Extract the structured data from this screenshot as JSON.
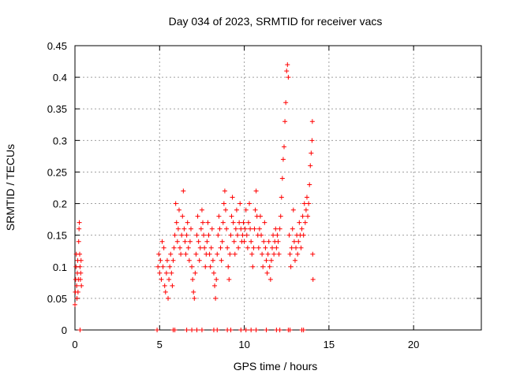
{
  "chart_data": {
    "type": "scatter",
    "title": "Day 034 of 2023, SRMTID for receiver vacs",
    "xlabel": "GPS time / hours",
    "ylabel": "SRMTID / TECUs",
    "xlim": [
      0,
      24
    ],
    "ylim": [
      0,
      0.45
    ],
    "xticks": [
      0,
      5,
      10,
      15,
      20
    ],
    "xtick_labels": [
      "0",
      "5",
      "10",
      "15",
      "20"
    ],
    "yticks": [
      0,
      0.05,
      0.1,
      0.15,
      0.2,
      0.25,
      0.3,
      0.35,
      0.4,
      0.45
    ],
    "ytick_labels": [
      "0",
      "0.05",
      "0.1",
      "0.15",
      "0.2",
      "0.25",
      "0.3",
      "0.35",
      "0.4",
      "0.45"
    ],
    "grid": true,
    "marker": "+",
    "color": "#ff0000",
    "series": [
      {
        "name": "SRMTID",
        "points": [
          [
            0.0,
            0.04
          ],
          [
            0.02,
            0.06
          ],
          [
            0.04,
            0.08
          ],
          [
            0.06,
            0.1
          ],
          [
            0.08,
            0.12
          ],
          [
            0.1,
            0.07
          ],
          [
            0.12,
            0.05
          ],
          [
            0.14,
            0.09
          ],
          [
            0.16,
            0.11
          ],
          [
            0.18,
            0.06
          ],
          [
            0.2,
            0.08
          ],
          [
            0.22,
            0.14
          ],
          [
            0.24,
            0.16
          ],
          [
            0.26,
            0.17
          ],
          [
            0.28,
            0.12
          ],
          [
            0.3,
            0.1
          ],
          [
            0.32,
            0.08
          ],
          [
            0.34,
            0.09
          ],
          [
            0.36,
            0.11
          ],
          [
            0.38,
            0.07
          ],
          [
            4.9,
            0.1
          ],
          [
            4.95,
            0.12
          ],
          [
            5.0,
            0.09
          ],
          [
            5.05,
            0.11
          ],
          [
            5.1,
            0.08
          ],
          [
            5.15,
            0.14
          ],
          [
            5.2,
            0.1
          ],
          [
            5.25,
            0.13
          ],
          [
            5.3,
            0.07
          ],
          [
            5.35,
            0.06
          ],
          [
            5.4,
            0.09
          ],
          [
            5.45,
            0.11
          ],
          [
            5.5,
            0.05
          ],
          [
            5.55,
            0.08
          ],
          [
            5.6,
            0.1
          ],
          [
            5.65,
            0.12
          ],
          [
            5.7,
            0.09
          ],
          [
            5.75,
            0.07
          ],
          [
            5.8,
            0.11
          ],
          [
            5.85,
            0.13
          ],
          [
            5.9,
            0.15
          ],
          [
            5.95,
            0.2
          ],
          [
            6.0,
            0.17
          ],
          [
            6.05,
            0.14
          ],
          [
            6.1,
            0.16
          ],
          [
            6.15,
            0.19
          ],
          [
            6.2,
            0.13
          ],
          [
            6.25,
            0.12
          ],
          [
            6.3,
            0.15
          ],
          [
            6.35,
            0.18
          ],
          [
            6.4,
            0.22
          ],
          [
            6.45,
            0.16
          ],
          [
            6.5,
            0.14
          ],
          [
            6.55,
            0.12
          ],
          [
            6.6,
            0.15
          ],
          [
            6.65,
            0.17
          ],
          [
            6.7,
            0.13
          ],
          [
            6.75,
            0.11
          ],
          [
            6.8,
            0.14
          ],
          [
            6.85,
            0.16
          ],
          [
            6.9,
            0.1
          ],
          [
            6.95,
            0.08
          ],
          [
            7.0,
            0.06
          ],
          [
            7.05,
            0.05
          ],
          [
            7.1,
            0.09
          ],
          [
            7.15,
            0.12
          ],
          [
            7.2,
            0.15
          ],
          [
            7.25,
            0.18
          ],
          [
            7.3,
            0.14
          ],
          [
            7.35,
            0.11
          ],
          [
            7.4,
            0.13
          ],
          [
            7.45,
            0.16
          ],
          [
            7.5,
            0.19
          ],
          [
            7.55,
            0.17
          ],
          [
            7.6,
            0.15
          ],
          [
            7.65,
            0.13
          ],
          [
            7.7,
            0.1
          ],
          [
            7.75,
            0.12
          ],
          [
            7.8,
            0.14
          ],
          [
            7.85,
            0.17
          ],
          [
            7.9,
            0.15
          ],
          [
            7.95,
            0.12
          ],
          [
            8.0,
            0.1
          ],
          [
            8.05,
            0.13
          ],
          [
            8.1,
            0.16
          ],
          [
            8.15,
            0.11
          ],
          [
            8.2,
            0.09
          ],
          [
            8.25,
            0.07
          ],
          [
            8.3,
            0.05
          ],
          [
            8.35,
            0.08
          ],
          [
            8.4,
            0.12
          ],
          [
            8.45,
            0.15
          ],
          [
            8.5,
            0.18
          ],
          [
            8.55,
            0.16
          ],
          [
            8.6,
            0.13
          ],
          [
            8.65,
            0.11
          ],
          [
            8.7,
            0.14
          ],
          [
            8.75,
            0.17
          ],
          [
            8.8,
            0.2
          ],
          [
            8.85,
            0.22
          ],
          [
            8.9,
            0.19
          ],
          [
            8.95,
            0.16
          ],
          [
            9.0,
            0.13
          ],
          [
            9.05,
            0.1
          ],
          [
            9.1,
            0.08
          ],
          [
            9.15,
            0.12
          ],
          [
            9.2,
            0.15
          ],
          [
            9.25,
            0.18
          ],
          [
            9.3,
            0.21
          ],
          [
            9.35,
            0.17
          ],
          [
            9.4,
            0.14
          ],
          [
            9.45,
            0.12
          ],
          [
            9.5,
            0.16
          ],
          [
            9.55,
            0.19
          ],
          [
            9.6,
            0.15
          ],
          [
            9.65,
            0.13
          ],
          [
            9.7,
            0.17
          ],
          [
            9.75,
            0.2
          ],
          [
            9.8,
            0.16
          ],
          [
            9.85,
            0.14
          ],
          [
            9.9,
            0.15
          ],
          [
            9.95,
            0.17
          ],
          [
            10.0,
            0.14
          ],
          [
            10.05,
            0.16
          ],
          [
            10.1,
            0.19
          ],
          [
            10.15,
            0.15
          ],
          [
            10.2,
            0.13
          ],
          [
            10.25,
            0.17
          ],
          [
            10.3,
            0.2
          ],
          [
            10.35,
            0.16
          ],
          [
            10.4,
            0.14
          ],
          [
            10.45,
            0.12
          ],
          [
            10.5,
            0.1
          ],
          [
            10.55,
            0.13
          ],
          [
            10.6,
            0.16
          ],
          [
            10.65,
            0.19
          ],
          [
            10.7,
            0.22
          ],
          [
            10.75,
            0.18
          ],
          [
            10.8,
            0.15
          ],
          [
            10.85,
            0.13
          ],
          [
            10.9,
            0.16
          ],
          [
            10.95,
            0.18
          ],
          [
            11.0,
            0.15
          ],
          [
            11.05,
            0.12
          ],
          [
            11.1,
            0.1
          ],
          [
            11.15,
            0.14
          ],
          [
            11.2,
            0.17
          ],
          [
            11.25,
            0.13
          ],
          [
            11.3,
            0.11
          ],
          [
            11.35,
            0.09
          ],
          [
            11.4,
            0.12
          ],
          [
            11.45,
            0.14
          ],
          [
            11.5,
            0.1
          ],
          [
            11.55,
            0.08
          ],
          [
            11.6,
            0.11
          ],
          [
            11.65,
            0.13
          ],
          [
            11.7,
            0.15
          ],
          [
            11.75,
            0.12
          ],
          [
            11.8,
            0.14
          ],
          [
            11.85,
            0.16
          ],
          [
            11.9,
            0.13
          ],
          [
            11.95,
            0.15
          ],
          [
            12.0,
            0.14
          ],
          [
            12.05,
            0.12
          ],
          [
            12.1,
            0.16
          ],
          [
            12.15,
            0.18
          ],
          [
            12.2,
            0.21
          ],
          [
            12.25,
            0.24
          ],
          [
            12.3,
            0.27
          ],
          [
            12.35,
            0.29
          ],
          [
            12.4,
            0.33
          ],
          [
            12.45,
            0.36
          ],
          [
            12.5,
            0.41
          ],
          [
            12.55,
            0.42
          ],
          [
            12.6,
            0.4
          ],
          [
            12.65,
            0.15
          ],
          [
            12.7,
            0.12
          ],
          [
            12.75,
            0.1
          ],
          [
            12.8,
            0.13
          ],
          [
            12.85,
            0.16
          ],
          [
            12.9,
            0.19
          ],
          [
            12.95,
            0.14
          ],
          [
            13.0,
            0.11
          ],
          [
            13.05,
            0.13
          ],
          [
            13.1,
            0.15
          ],
          [
            13.15,
            0.12
          ],
          [
            13.2,
            0.14
          ],
          [
            13.25,
            0.17
          ],
          [
            13.3,
            0.15
          ],
          [
            13.35,
            0.13
          ],
          [
            13.4,
            0.16
          ],
          [
            13.45,
            0.18
          ],
          [
            13.5,
            0.15
          ],
          [
            13.55,
            0.2
          ],
          [
            13.6,
            0.17
          ],
          [
            13.65,
            0.19
          ],
          [
            13.7,
            0.21
          ],
          [
            13.75,
            0.18
          ],
          [
            13.8,
            0.2
          ],
          [
            13.85,
            0.23
          ],
          [
            13.9,
            0.26
          ],
          [
            13.95,
            0.28
          ],
          [
            14.0,
            0.3
          ],
          [
            14.02,
            0.33
          ],
          [
            14.04,
            0.12
          ],
          [
            14.06,
            0.08
          ],
          [
            0.3,
            0.0
          ],
          [
            4.85,
            0.0
          ],
          [
            5.8,
            0.0
          ],
          [
            5.9,
            0.0
          ],
          [
            6.6,
            0.0
          ],
          [
            6.9,
            0.0
          ],
          [
            7.2,
            0.0
          ],
          [
            7.5,
            0.0
          ],
          [
            8.2,
            0.0
          ],
          [
            8.4,
            0.0
          ],
          [
            9.0,
            0.0
          ],
          [
            9.2,
            0.0
          ],
          [
            9.8,
            0.0
          ],
          [
            10.1,
            0.0
          ],
          [
            10.4,
            0.0
          ],
          [
            10.7,
            0.0
          ],
          [
            11.3,
            0.0
          ],
          [
            11.9,
            0.0
          ],
          [
            12.1,
            0.0
          ],
          [
            12.6,
            0.0
          ],
          [
            12.7,
            0.0
          ],
          [
            13.4,
            0.0
          ],
          [
            13.5,
            0.0
          ]
        ]
      }
    ]
  }
}
